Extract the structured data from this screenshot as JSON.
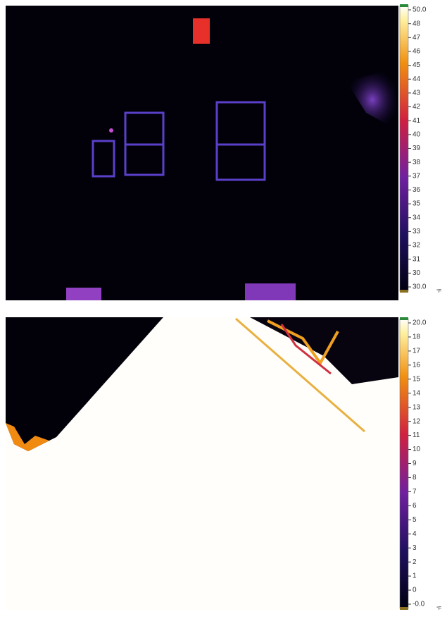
{
  "images": [
    {
      "scale": {
        "labels": [
          "50.0",
          "48",
          "47",
          "46",
          "45",
          "44",
          "43",
          "42",
          "41",
          "40",
          "39",
          "38",
          "37",
          "36",
          "35",
          "34",
          "33",
          "32",
          "31",
          "30",
          "30.0"
        ],
        "unit": "°F"
      }
    },
    {
      "scale": {
        "labels": [
          "20.0",
          "18",
          "17",
          "16",
          "15",
          "14",
          "13",
          "12",
          "11",
          "10",
          "9",
          "8",
          "7",
          "6",
          "5",
          "4",
          "3",
          "2",
          "1",
          "0",
          "-0.0"
        ],
        "unit": "°F"
      }
    }
  ]
}
